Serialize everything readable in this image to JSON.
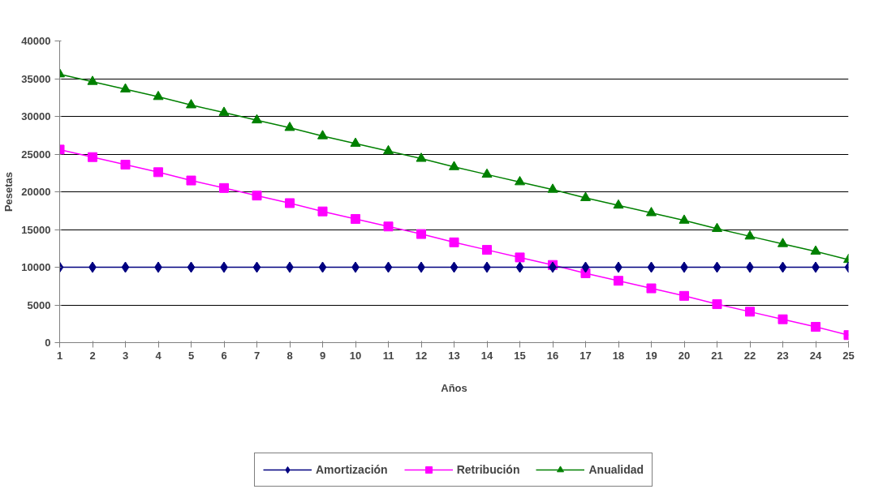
{
  "chart_data": {
    "type": "line",
    "xlabel": "Años",
    "ylabel": "Pesetas",
    "x": [
      1,
      2,
      3,
      4,
      5,
      6,
      7,
      8,
      9,
      10,
      11,
      12,
      13,
      14,
      15,
      16,
      17,
      18,
      19,
      20,
      21,
      22,
      23,
      24,
      25
    ],
    "xlim": [
      1,
      25
    ],
    "xticks": [
      1,
      2,
      3,
      4,
      5,
      6,
      7,
      8,
      9,
      10,
      11,
      12,
      13,
      14,
      15,
      16,
      17,
      18,
      19,
      20,
      21,
      22,
      23,
      24,
      25
    ],
    "ylim": [
      0,
      40000
    ],
    "yticks": [
      0,
      5000,
      10000,
      15000,
      20000,
      25000,
      30000,
      35000,
      40000
    ],
    "grid": "y",
    "legend": "bottom",
    "line_style": "solid",
    "series": [
      {
        "name": "Amortización",
        "color": "#000080",
        "marker": "diamond",
        "values": [
          10000,
          10000,
          10000,
          10000,
          10000,
          10000,
          10000,
          10000,
          10000,
          10000,
          10000,
          10000,
          10000,
          10000,
          10000,
          10000,
          10000,
          10000,
          10000,
          10000,
          10000,
          10000,
          10000,
          10000,
          10000
        ]
      },
      {
        "name": "Retribución",
        "color": "#ff00ff",
        "marker": "square",
        "values": [
          25600,
          24600,
          23600,
          22600,
          21500,
          20500,
          19500,
          18500,
          17400,
          16400,
          15400,
          14400,
          13300,
          12300,
          11300,
          10300,
          9200,
          8200,
          7200,
          6200,
          5100,
          4100,
          3100,
          2100,
          1000
        ]
      },
      {
        "name": "Anualidad",
        "color": "#008000",
        "marker": "triangle",
        "values": [
          35600,
          34600,
          33600,
          32600,
          31500,
          30500,
          29500,
          28500,
          27400,
          26400,
          25400,
          24400,
          23300,
          22300,
          21300,
          20300,
          19200,
          18200,
          17200,
          16200,
          15100,
          14100,
          13100,
          12100,
          11000
        ]
      }
    ]
  }
}
